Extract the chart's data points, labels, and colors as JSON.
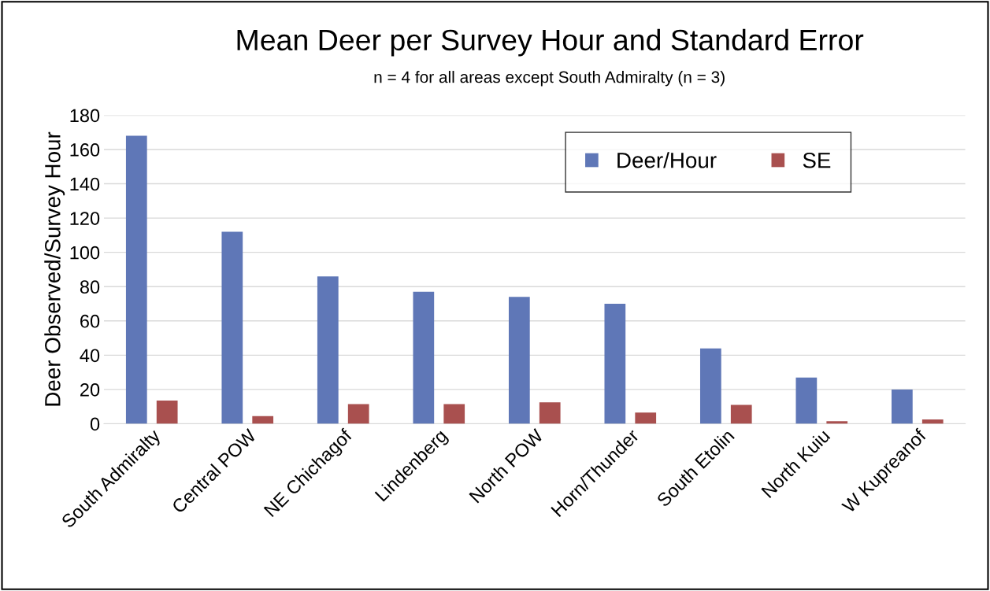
{
  "chart_data": {
    "type": "bar",
    "title": "Mean Deer per Survey Hour and Standard Error",
    "subtitle": "n = 4 for all areas except South Admiralty (n = 3)",
    "ylabel": "Deer Observed/Survey Hour",
    "categories": [
      "South Admiralty",
      "Central POW",
      "NE Chichagof",
      "Lindenberg",
      "North POW",
      "Horn/Thunder",
      "South Etolin",
      "North Kuiu",
      "W Kupreanof"
    ],
    "series": [
      {
        "name": "Deer/Hour",
        "color": "#5f77b7",
        "values": [
          168,
          112,
          86,
          77,
          74,
          70,
          44,
          27,
          20
        ]
      },
      {
        "name": "SE",
        "color": "#a9504f",
        "values": [
          13.5,
          4.5,
          11.5,
          11.5,
          12.5,
          6.5,
          11,
          1.5,
          2.5
        ]
      }
    ],
    "ylim": [
      0,
      180
    ],
    "yticks": [
      0,
      20,
      40,
      60,
      80,
      100,
      120,
      140,
      160,
      180
    ],
    "grid": "y",
    "legend": "top right"
  }
}
